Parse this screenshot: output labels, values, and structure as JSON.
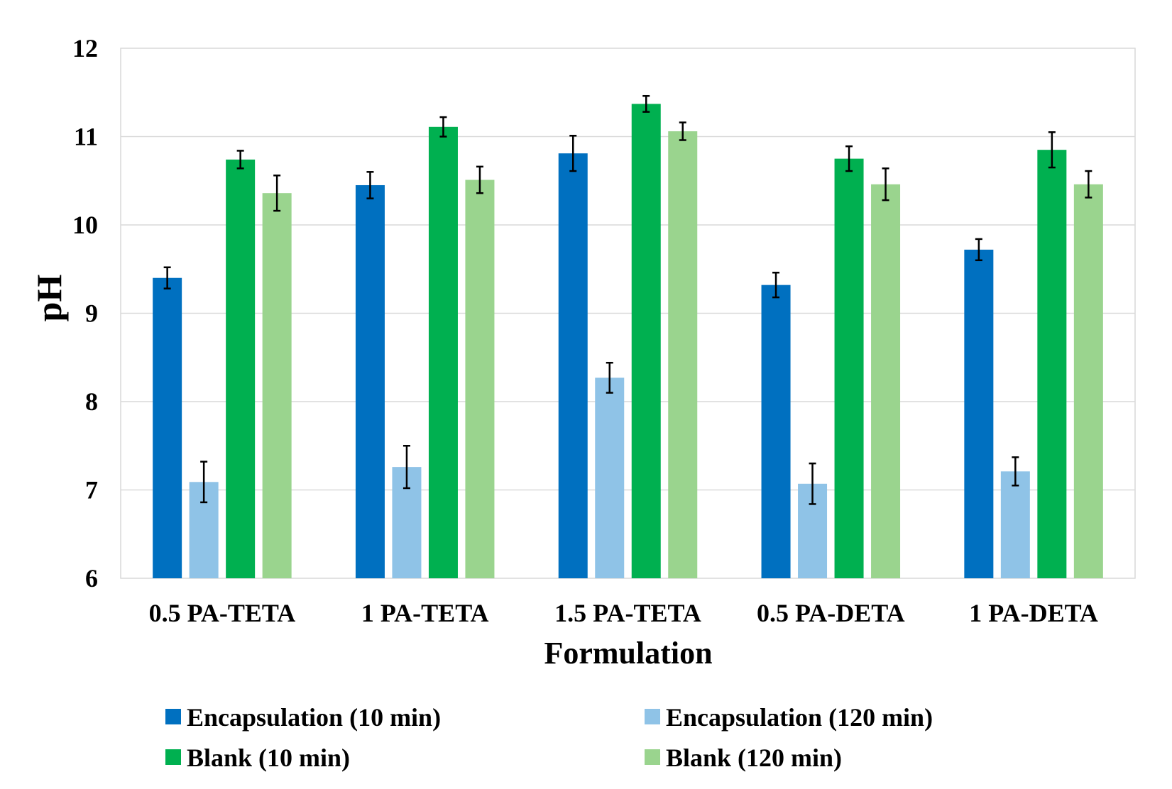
{
  "chart_data": {
    "type": "bar",
    "title": "",
    "xlabel": "Formulation",
    "ylabel": "pH",
    "ylim": [
      6,
      12
    ],
    "yticks": [
      "6",
      "7",
      "8",
      "9",
      "10",
      "11",
      "12"
    ],
    "grid": true,
    "legend_position": "bottom",
    "categories": [
      "0.5 PA-TETA",
      "1 PA-TETA",
      "1.5 PA-TETA",
      "0.5 PA-DETA",
      "1 PA-DETA"
    ],
    "series": [
      {
        "name": "Encapsulation (10 min)",
        "color": "#0070C0",
        "values": [
          9.4,
          10.45,
          10.81,
          9.32,
          9.72
        ],
        "errors": [
          0.12,
          0.15,
          0.2,
          0.14,
          0.12
        ]
      },
      {
        "name": "Encapsulation (120 min)",
        "color": "#8FC3E7",
        "values": [
          7.09,
          7.26,
          8.27,
          7.07,
          7.21
        ],
        "errors": [
          0.23,
          0.24,
          0.17,
          0.23,
          0.16
        ]
      },
      {
        "name": "Blank (10 min)",
        "color": "#00B050",
        "values": [
          10.74,
          11.11,
          11.37,
          10.75,
          10.85
        ],
        "errors": [
          0.1,
          0.11,
          0.09,
          0.14,
          0.2
        ]
      },
      {
        "name": "Blank (120 min)",
        "color": "#9AD48E",
        "values": [
          10.36,
          10.51,
          11.06,
          10.46,
          10.46
        ],
        "errors": [
          0.2,
          0.15,
          0.1,
          0.18,
          0.15
        ]
      }
    ]
  }
}
